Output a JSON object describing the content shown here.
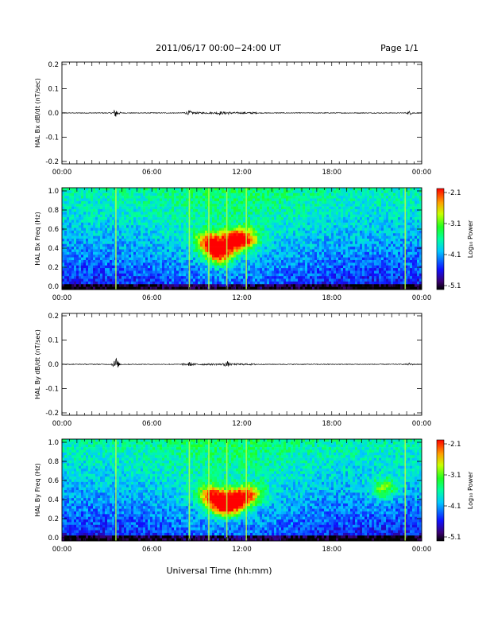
{
  "header": {
    "title": "2011/06/17   00:00−24:00 UT",
    "page_label": "Page 1/1"
  },
  "footer": {
    "xlabel": "Universal Time (hh:mm)"
  },
  "colorbar": {
    "ticks": [
      "-2.1",
      "-3.1",
      "-4.1",
      "-5.1"
    ],
    "label": "Log₁₀ Power"
  },
  "chart_data": [
    {
      "type": "line",
      "ylabel": "HAL Bx dB/dt (nT/sec)",
      "xlim": [
        "00:00",
        "24:00"
      ],
      "xticks": [
        "00:00",
        "06:00",
        "12:00",
        "18:00",
        "00:00"
      ],
      "ylim": [
        -0.2,
        0.2
      ],
      "yticks": [
        "0.2",
        "0.1",
        "0.0",
        "-0.1",
        "-0.2"
      ],
      "series_note": "",
      "events": [
        {
          "time_h": 3.6,
          "amplitude": 0.025
        },
        {
          "time_h": 8.5,
          "amplitude": 0.008
        },
        {
          "time_h": 10.5,
          "amplitude": 0.006
        },
        {
          "time_h": 11.0,
          "amplitude": 0.006
        },
        {
          "time_h": 23.2,
          "amplitude": 0.008
        }
      ]
    },
    {
      "type": "heatmap",
      "ylabel": "HAL Bx Freq (Hz)",
      "xlim": [
        "00:00",
        "24:00"
      ],
      "xticks": [
        "00:00",
        "06:00",
        "12:00",
        "18:00",
        "00:00"
      ],
      "ylim": [
        0.0,
        1.0
      ],
      "yticks": [
        "1.0",
        "0.8",
        "0.6",
        "0.4",
        "0.2",
        "0.0"
      ],
      "zlim": [
        -5.1,
        -2.1
      ],
      "vertical_lines_h": [
        3.6,
        8.5,
        9.8,
        11.0,
        12.3,
        22.9
      ],
      "hotspots": [
        {
          "t_h": 9.8,
          "f_hz": 0.47,
          "power": -2.5
        },
        {
          "t_h": 11.5,
          "f_hz": 0.48,
          "power": -2.4
        },
        {
          "t_h": 10.5,
          "f_hz": 0.35,
          "power": -2.3
        },
        {
          "t_h": 12.3,
          "f_hz": 0.5,
          "power": -3.0
        }
      ]
    },
    {
      "type": "line",
      "ylabel": "HAL By dB/dt (nT/sec)",
      "xlim": [
        "00:00",
        "24:00"
      ],
      "xticks": [
        "00:00",
        "06:00",
        "12:00",
        "18:00",
        "00:00"
      ],
      "ylim": [
        -0.2,
        0.2
      ],
      "yticks": [
        "0.2",
        "0.1",
        "0.0",
        "-0.1",
        "-0.2"
      ],
      "events": [
        {
          "time_h": 3.6,
          "amplitude": 0.035
        },
        {
          "time_h": 8.5,
          "amplitude": 0.006
        },
        {
          "time_h": 11.0,
          "amplitude": 0.012
        },
        {
          "time_h": 23.2,
          "amplitude": 0.006
        }
      ]
    },
    {
      "type": "heatmap",
      "ylabel": "HAL By Freq (Hz)",
      "xlim": [
        "00:00",
        "24:00"
      ],
      "xticks": [
        "00:00",
        "06:00",
        "12:00",
        "18:00",
        "00:00"
      ],
      "ylim": [
        0.0,
        1.0
      ],
      "yticks": [
        "1.0",
        "0.8",
        "0.6",
        "0.4",
        "0.2",
        "0.0"
      ],
      "zlim": [
        -5.1,
        -2.1
      ],
      "vertical_lines_h": [
        3.6,
        8.5,
        9.8,
        11.0,
        12.3,
        22.9
      ],
      "hotspots": [
        {
          "t_h": 10.0,
          "f_hz": 0.44,
          "power": -2.5
        },
        {
          "t_h": 11.6,
          "f_hz": 0.4,
          "power": -2.2
        },
        {
          "t_h": 10.8,
          "f_hz": 0.33,
          "power": -2.4
        },
        {
          "t_h": 12.6,
          "f_hz": 0.46,
          "power": -3.0
        },
        {
          "t_h": 21.5,
          "f_hz": 0.52,
          "power": -3.2
        }
      ]
    }
  ]
}
